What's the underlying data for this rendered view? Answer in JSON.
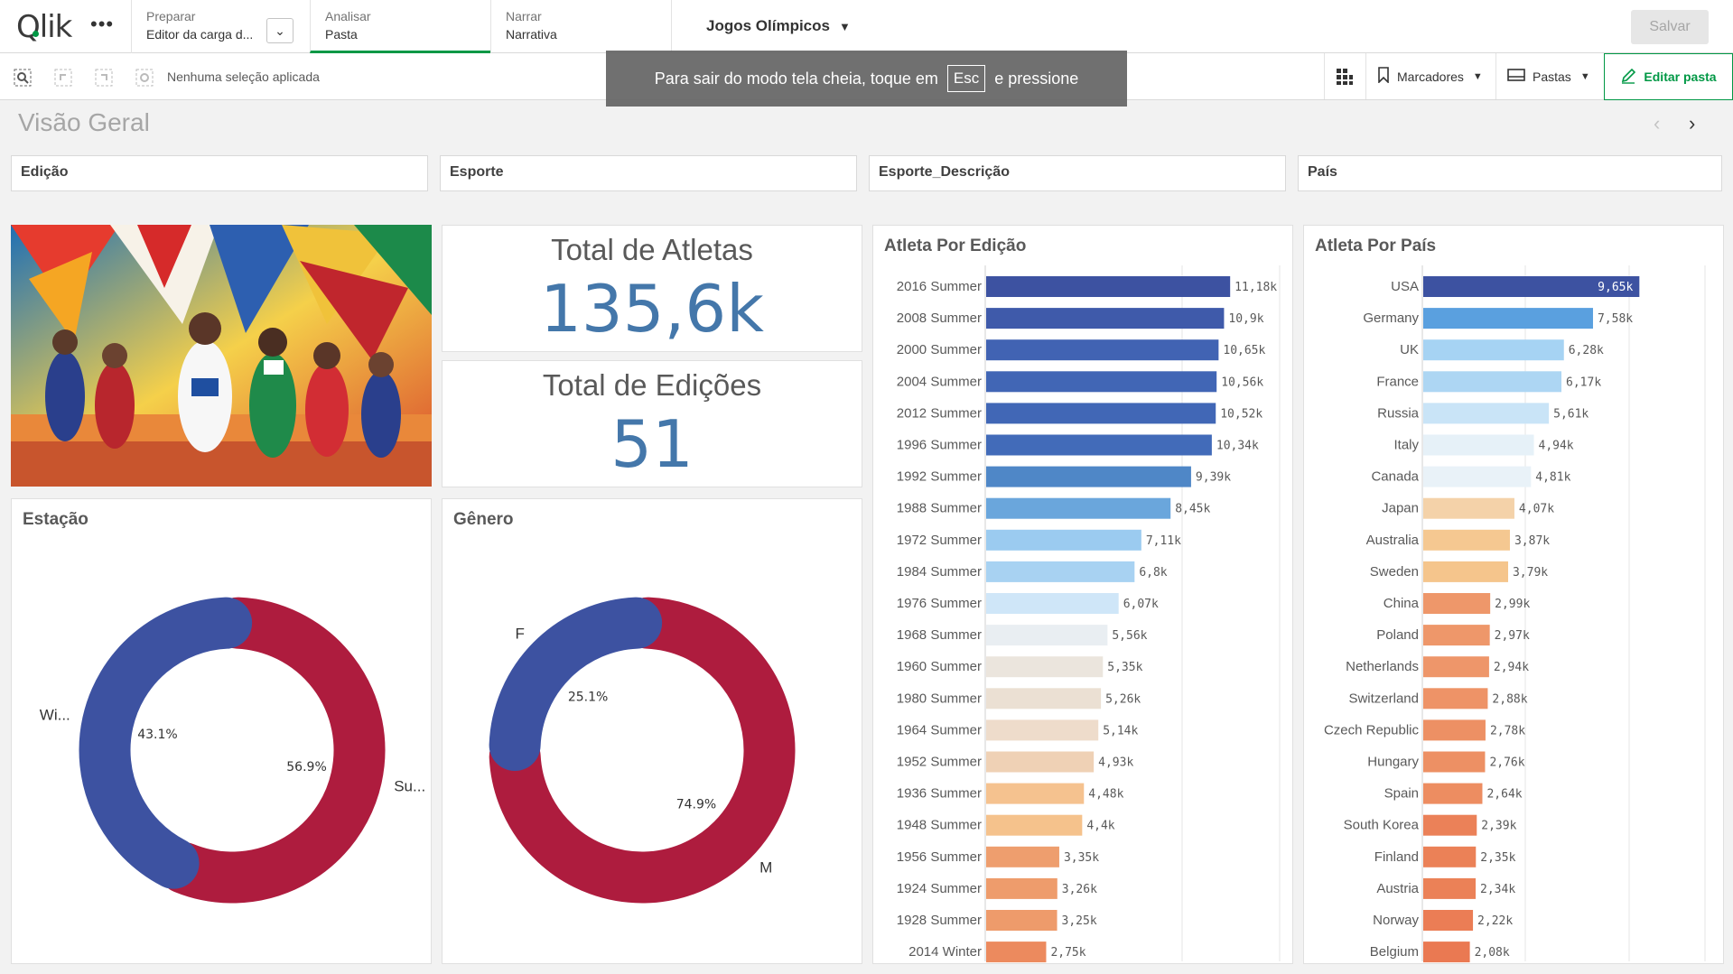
{
  "topbar": {
    "logo": "Qlik",
    "sections": [
      {
        "small": "Preparar",
        "big": "Editor da carga d..."
      },
      {
        "small": "Analisar",
        "big": "Pasta"
      },
      {
        "small": "Narrar",
        "big": "Narrativa"
      }
    ],
    "app_title": "Jogos Olímpicos",
    "save_label": "Salvar"
  },
  "toolbar": {
    "no_selection": "Nenhuma seleção aplicada",
    "bookmarks": "Marcadores",
    "sheets": "Pastas",
    "edit_sheet": "Editar pasta"
  },
  "toast": {
    "before": "Para sair do modo tela cheia, toque em",
    "key": "Esc",
    "after": "e pressione"
  },
  "sheet": {
    "title": "Visão Geral"
  },
  "filters": [
    "Edição",
    "Esporte",
    "Esporte_Descrição",
    "País"
  ],
  "kpis": [
    {
      "title": "Total de Atletas",
      "value": "135,6k"
    },
    {
      "title": "Total de Edições",
      "value": "51"
    }
  ],
  "colors": {
    "accent": "#009845",
    "blue_dark": "#3d52a1",
    "red": "#ae1c3e",
    "kpi_blue": "#4477aa"
  },
  "chart_data": [
    {
      "type": "bar",
      "title": "Atleta Por Edição",
      "categories": [
        "2016 Summer",
        "2008 Summer",
        "2000 Summer",
        "2004 Summer",
        "2012 Summer",
        "1996 Summer",
        "1992 Summer",
        "1988 Summer",
        "1972 Summer",
        "1984 Summer",
        "1976 Summer",
        "1968 Summer",
        "1960 Summer",
        "1980 Summer",
        "1964 Summer",
        "1952 Summer",
        "1936 Summer",
        "1948 Summer",
        "1956 Summer",
        "1924 Summer",
        "1928 Summer",
        "2014 Winter"
      ],
      "values": [
        11.18,
        10.9,
        10.65,
        10.56,
        10.52,
        10.34,
        9.39,
        8.45,
        7.11,
        6.8,
        6.07,
        5.56,
        5.35,
        5.26,
        5.14,
        4.93,
        4.48,
        4.4,
        3.35,
        3.26,
        3.25,
        2.75
      ],
      "labels": [
        "11,18k",
        "10,9k",
        "10,65k",
        "10,56k",
        "10,52k",
        "10,34k",
        "9,39k",
        "8,45k",
        "7,11k",
        "6,8k",
        "6,07k",
        "5,56k",
        "5,35k",
        "5,26k",
        "5,14k",
        "4,93k",
        "4,48k",
        "4,4k",
        "3,35k",
        "3,26k",
        "3,25k",
        "2,75k"
      ],
      "bar_colors": [
        "#3d52a1",
        "#3f5aaa",
        "#4163b3",
        "#4166b5",
        "#4167b6",
        "#426bb9",
        "#4f87c7",
        "#6aa6dc",
        "#9bcbf0",
        "#a8d2f2",
        "#cfe6f8",
        "#e9eef2",
        "#ebe5dd",
        "#ebe0d3",
        "#eedccb",
        "#efd1b5",
        "#f5c28f",
        "#f5c28c",
        "#ee9e6e",
        "#ee9c6c",
        "#ee9b6b",
        "#ec8a5e"
      ],
      "xlim": [
        0,
        12
      ]
    },
    {
      "type": "bar",
      "title": "Atleta Por País",
      "categories": [
        "USA",
        "Germany",
        "UK",
        "France",
        "Russia",
        "Italy",
        "Canada",
        "Japan",
        "Australia",
        "Sweden",
        "China",
        "Poland",
        "Netherlands",
        "Switzerland",
        "Czech Republic",
        "Hungary",
        "Spain",
        "South Korea",
        "Finland",
        "Austria",
        "Norway",
        "Belgium"
      ],
      "values": [
        9.65,
        7.58,
        6.28,
        6.17,
        5.61,
        4.94,
        4.81,
        4.07,
        3.87,
        3.79,
        2.99,
        2.97,
        2.94,
        2.88,
        2.78,
        2.76,
        2.64,
        2.39,
        2.35,
        2.34,
        2.22,
        2.08
      ],
      "labels": [
        "9,65k",
        "7,58k",
        "6,28k",
        "6,17k",
        "5,61k",
        "4,94k",
        "4,81k",
        "4,07k",
        "3,87k",
        "3,79k",
        "2,99k",
        "2,97k",
        "2,94k",
        "2,88k",
        "2,78k",
        "2,76k",
        "2,64k",
        "2,39k",
        "2,35k",
        "2,34k",
        "2,22k",
        "2,08k"
      ],
      "bar_colors": [
        "#3d52a1",
        "#5aa0df",
        "#a6d3f3",
        "#add6f3",
        "#c9e4f7",
        "#e6f1f8",
        "#e9f2f8",
        "#f4d2a9",
        "#f5c891",
        "#f5c58c",
        "#ee976a",
        "#ee976a",
        "#ee966a",
        "#ee9367",
        "#ed9064",
        "#ed9064",
        "#ed8d61",
        "#eb8158",
        "#eb8157",
        "#eb8157",
        "#eb7d55",
        "#ea7952"
      ],
      "xlim": [
        0,
        10
      ]
    },
    {
      "type": "pie",
      "title": "Estação",
      "categories": [
        "Wi...",
        "Su..."
      ],
      "values": [
        43.1,
        56.9
      ],
      "labels": [
        "43.1%",
        "56.9%"
      ],
      "colors": [
        "#3d52a1",
        "#ae1c3e"
      ]
    },
    {
      "type": "pie",
      "title": "Gênero",
      "categories": [
        "F",
        "M"
      ],
      "values": [
        25.1,
        74.9
      ],
      "labels": [
        "25.1%",
        "74.9%"
      ],
      "colors": [
        "#3d52a1",
        "#ae1c3e"
      ]
    }
  ]
}
